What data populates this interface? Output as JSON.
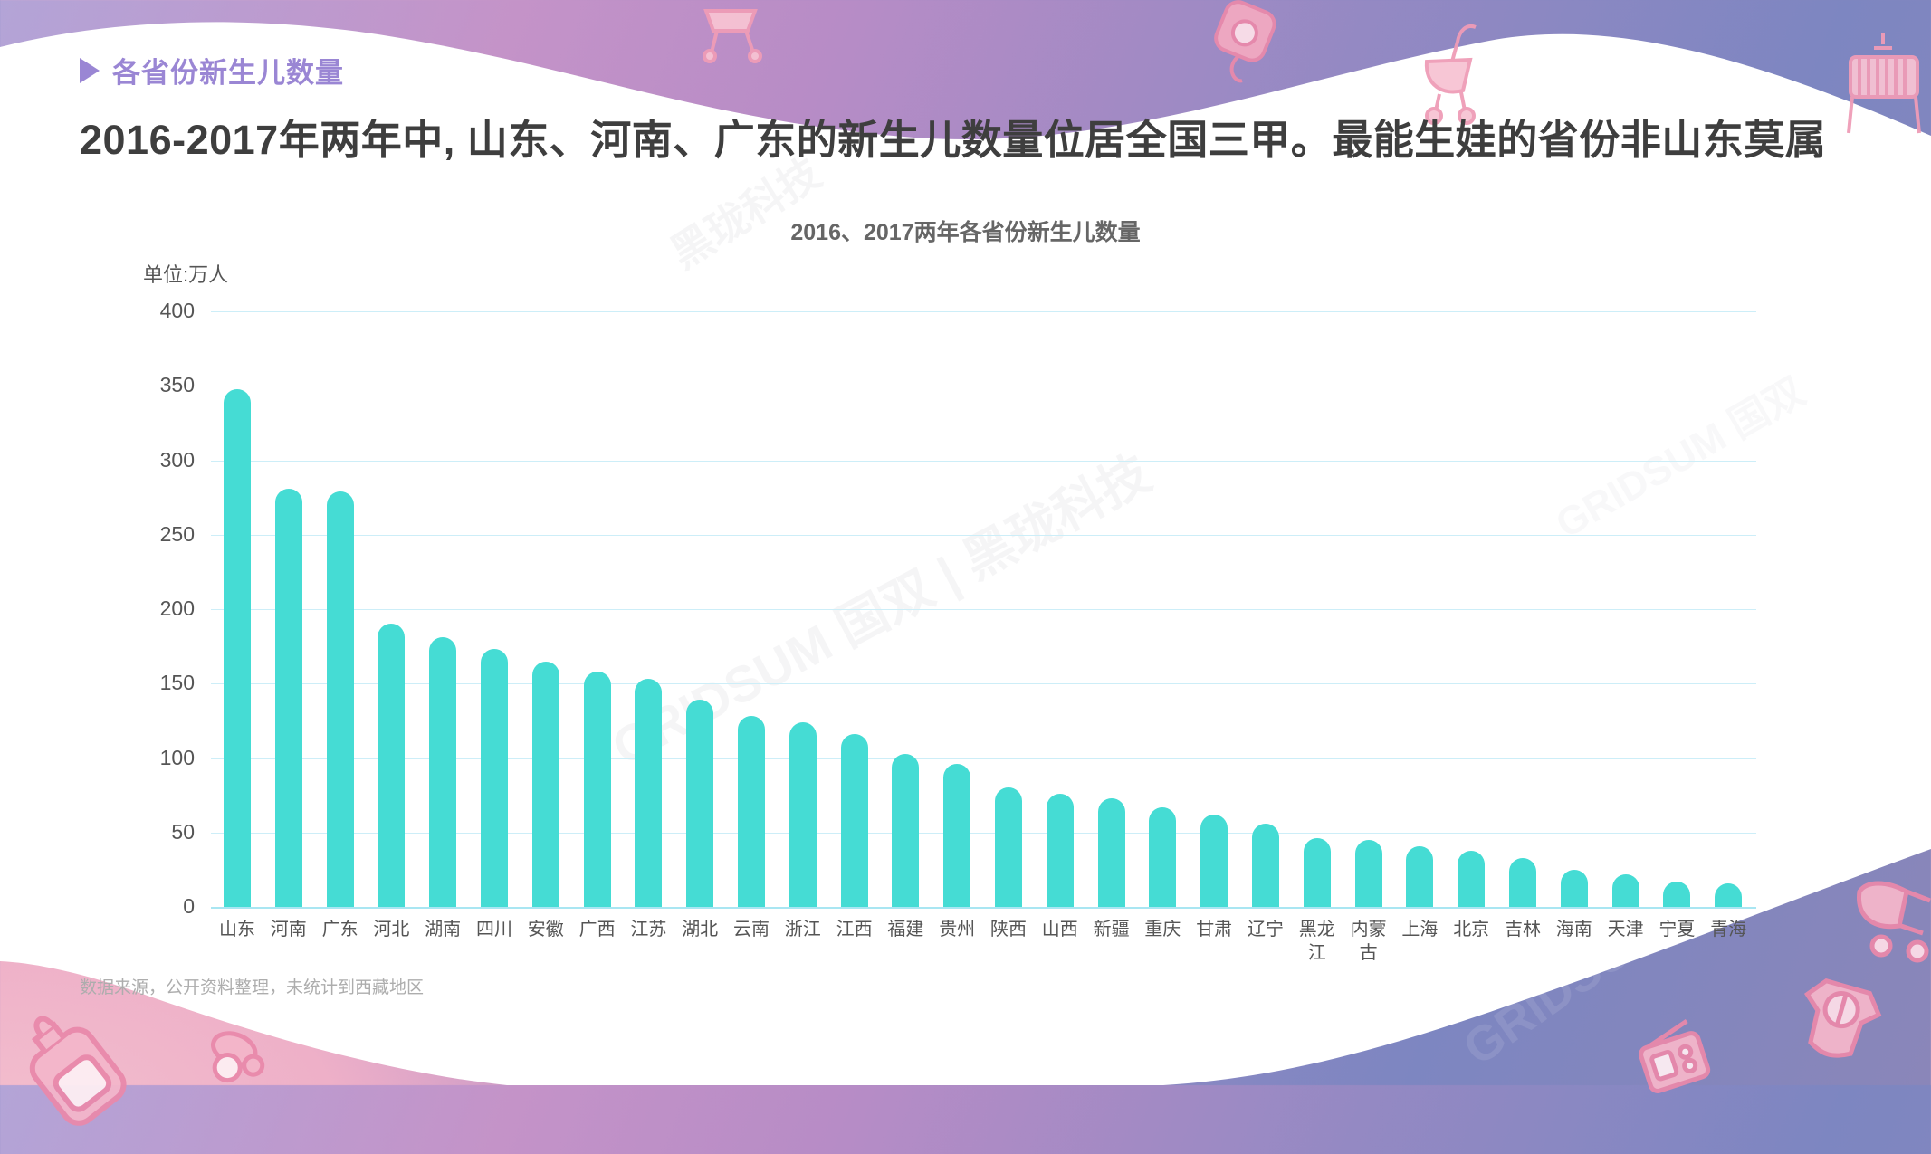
{
  "page": {
    "section_tag": "各省份新生儿数量",
    "headline": "2016-2017年两年中, 山东、河南、广东的新生儿数量位居全国三甲。最能生娃的省份非山东莫属",
    "footnote": "数据来源，公开资料整理，未统计到西藏地区",
    "watermarks": [
      "GRIDSUM 国双",
      "黑珑科技",
      "GRIDSUM 国双 | 黑珑科技",
      "GRIDSUM"
    ]
  },
  "chart_data": {
    "type": "bar",
    "title": "2016、2017两年各省份新生儿数量",
    "unit_label": "单位:万人",
    "xlabel": "",
    "ylabel": "万人",
    "ylim": [
      0,
      400
    ],
    "yticks": [
      400,
      350,
      300,
      250,
      200,
      150,
      100,
      50,
      0
    ],
    "grid": true,
    "legend": "none",
    "categories": [
      "山东",
      "河南",
      "广东",
      "河北",
      "湖南",
      "四川",
      "安徽",
      "广西",
      "江苏",
      "湖北",
      "云南",
      "浙江",
      "江西",
      "福建",
      "贵州",
      "陕西",
      "山西",
      "新疆",
      "重庆",
      "甘肃",
      "辽宁",
      "黑龙江",
      "内蒙古",
      "上海",
      "北京",
      "吉林",
      "海南",
      "天津",
      "宁夏",
      "青海"
    ],
    "values": [
      348,
      281,
      279,
      190,
      181,
      173,
      165,
      158,
      153,
      139,
      128,
      124,
      116,
      103,
      96,
      80,
      76,
      73,
      67,
      62,
      56,
      46,
      45,
      41,
      38,
      33,
      25,
      22,
      17,
      16
    ]
  },
  "colors": {
    "bar": "#45dcd4",
    "gridline": "#cdeef8",
    "axis_line": "#a9e6f2",
    "accent_purple": "#9a86d4",
    "title_gray": "#3e3e3e",
    "deco_pink": "#ef9cb7"
  }
}
